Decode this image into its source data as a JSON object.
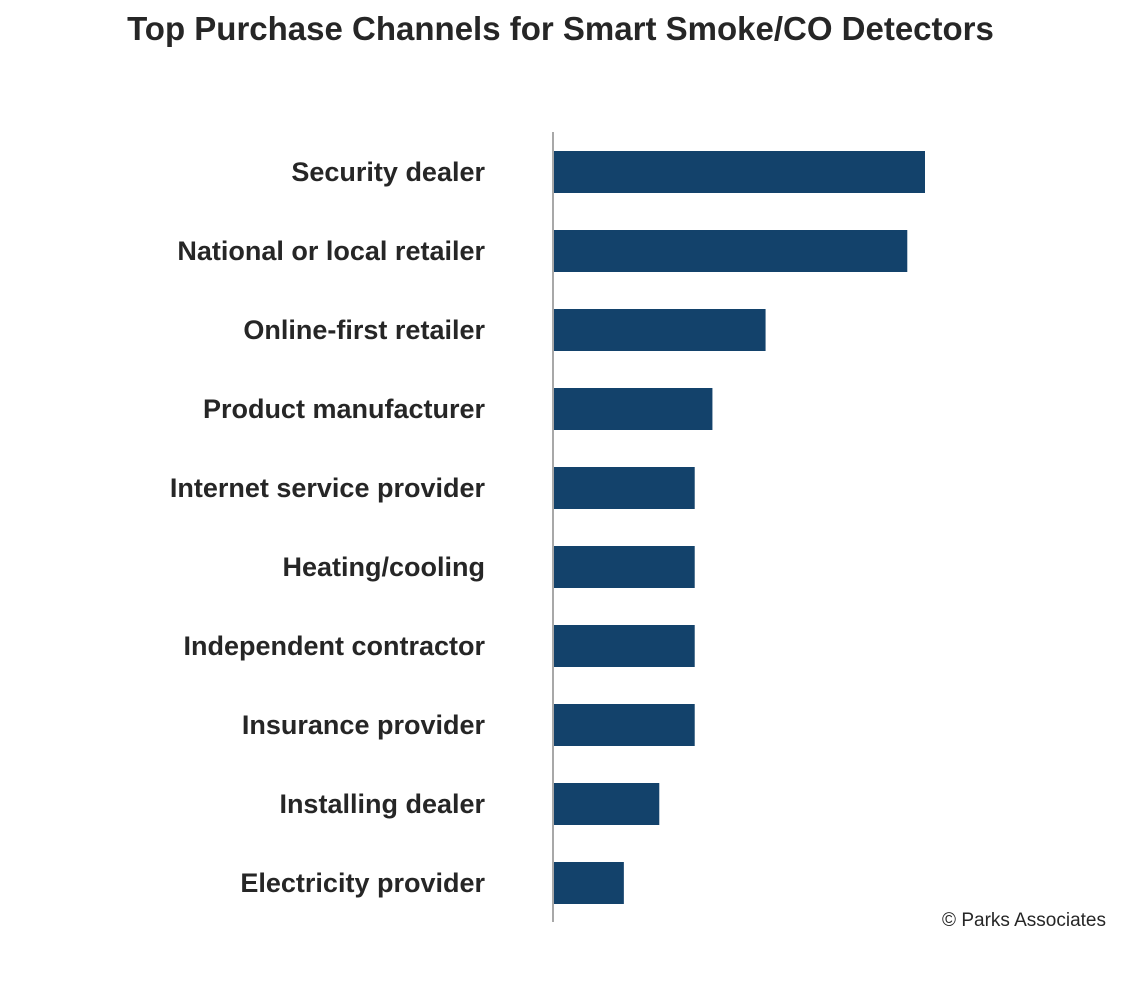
{
  "chart_data": {
    "type": "bar",
    "orientation": "horizontal",
    "title": "Top Purchase Channels for Smart Smoke/CO Detectors",
    "categories": [
      "Security dealer",
      "National or local retailer",
      "Online-first retailer",
      "Product manufacturer",
      "Internet service provider",
      "Heating/cooling",
      "Independent contractor",
      "Insurance provider",
      "Installing dealer",
      "Electricity provider"
    ],
    "values": [
      21,
      20,
      12,
      9,
      8,
      8,
      8,
      8,
      6,
      4
    ],
    "xlim": [
      0,
      21
    ],
    "xlabel": "",
    "ylabel": "",
    "grid": false,
    "legend": "none",
    "bar_color": "#13426b"
  },
  "footer": {
    "copyright": "© Parks Associates"
  }
}
